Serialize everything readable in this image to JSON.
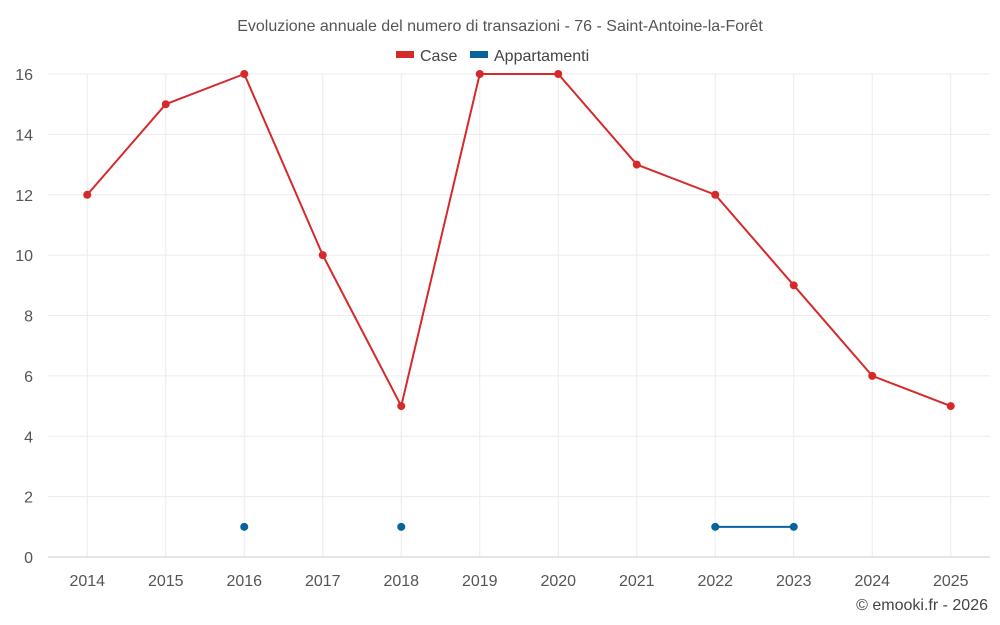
{
  "chart_data": {
    "type": "line",
    "title": "Evoluzione annuale del numero di transazioni - 76 - Saint-Antoine-la-Forêt",
    "xlabel": "",
    "ylabel": "",
    "categories": [
      "2014",
      "2015",
      "2016",
      "2017",
      "2018",
      "2019",
      "2020",
      "2021",
      "2022",
      "2023",
      "2024",
      "2025"
    ],
    "ylim": [
      0,
      16
    ],
    "yticks": [
      0,
      2,
      4,
      6,
      8,
      10,
      12,
      14,
      16
    ],
    "grid": true,
    "legend_position": "top-center",
    "series": [
      {
        "name": "Case",
        "color": "#d62a2a",
        "values": [
          12,
          15,
          16,
          10,
          5,
          16,
          16,
          13,
          12,
          9,
          6,
          5
        ]
      },
      {
        "name": "Appartamenti",
        "color": "#08639c",
        "values": [
          null,
          null,
          1,
          null,
          1,
          null,
          null,
          null,
          1,
          1,
          null,
          null
        ]
      }
    ]
  },
  "credit": "© emooki.fr - 2026"
}
